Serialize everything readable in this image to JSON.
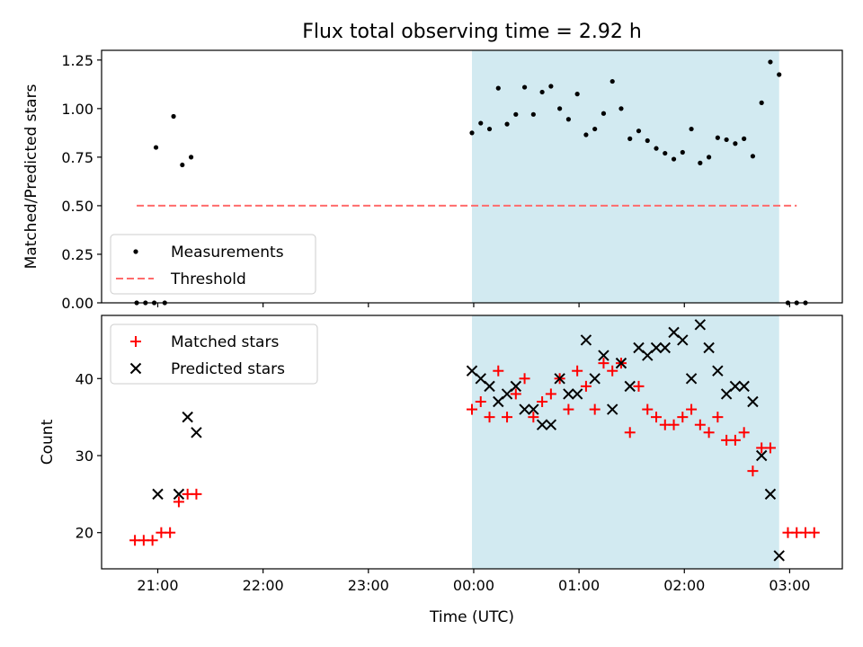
{
  "title": "Flux total observing time = 2.92 h",
  "xlabel": "Time (UTC)",
  "colors": {
    "shade": "#add8e6",
    "threshold": "#ff6b6b",
    "matched": "#ff0000",
    "predicted": "#000000",
    "measurement": "#000000"
  },
  "chart_data": [
    {
      "type": "scatter",
      "ylabel": "Matched/Predicted stars",
      "xlim": [
        "20:28",
        "03:30"
      ],
      "ylim": [
        0,
        1.3
      ],
      "yticks": [
        0.0,
        0.25,
        0.5,
        0.75,
        1.0,
        1.25
      ],
      "ytick_labels": [
        "0.00",
        "0.25",
        "0.50",
        "0.75",
        "1.00",
        "1.25"
      ],
      "shaded_region": [
        "23:59",
        "02:54"
      ],
      "legend_position": "lower left",
      "threshold": {
        "name": "Threshold",
        "y": 0.5,
        "x_range": [
          "20:48",
          "03:04"
        ],
        "style": "dashed"
      },
      "series": [
        {
          "name": "Measurements",
          "marker": "dot",
          "points": [
            [
              "20:48",
              0.0
            ],
            [
              "20:53",
              0.0
            ],
            [
              "20:58",
              0.0
            ],
            [
              "20:59",
              0.8
            ],
            [
              "21:04",
              0.0
            ],
            [
              "21:09",
              0.96
            ],
            [
              "21:14",
              0.71
            ],
            [
              "21:19",
              0.75
            ],
            [
              "23:59",
              0.875
            ],
            [
              "00:04",
              0.925
            ],
            [
              "00:09",
              0.895
            ],
            [
              "00:14",
              1.105
            ],
            [
              "00:19",
              0.92
            ],
            [
              "00:24",
              0.97
            ],
            [
              "00:29",
              1.11
            ],
            [
              "00:34",
              0.97
            ],
            [
              "00:39",
              1.085
            ],
            [
              "00:44",
              1.115
            ],
            [
              "00:49",
              1.0
            ],
            [
              "00:54",
              0.945
            ],
            [
              "00:59",
              1.075
            ],
            [
              "01:04",
              0.865
            ],
            [
              "01:09",
              0.895
            ],
            [
              "01:14",
              0.975
            ],
            [
              "01:19",
              1.14
            ],
            [
              "01:24",
              1.0
            ],
            [
              "01:29",
              0.845
            ],
            [
              "01:34",
              0.885
            ],
            [
              "01:39",
              0.835
            ],
            [
              "01:44",
              0.795
            ],
            [
              "01:49",
              0.77
            ],
            [
              "01:54",
              0.74
            ],
            [
              "01:59",
              0.775
            ],
            [
              "02:04",
              0.895
            ],
            [
              "02:09",
              0.72
            ],
            [
              "02:14",
              0.75
            ],
            [
              "02:19",
              0.85
            ],
            [
              "02:24",
              0.84
            ],
            [
              "02:29",
              0.82
            ],
            [
              "02:34",
              0.845
            ],
            [
              "02:39",
              0.755
            ],
            [
              "02:44",
              1.03
            ],
            [
              "02:49",
              1.24
            ],
            [
              "02:54",
              1.175
            ],
            [
              "02:59",
              0.0
            ],
            [
              "03:04",
              0.0
            ],
            [
              "03:09",
              0.0
            ]
          ]
        }
      ]
    },
    {
      "type": "scatter",
      "ylabel": "Count",
      "xlim": [
        "20:28",
        "03:30"
      ],
      "ylim": [
        15.3,
        48.2
      ],
      "yticks": [
        20,
        30,
        40
      ],
      "ytick_labels": [
        "20",
        "30",
        "40"
      ],
      "xticks": [
        "21:00",
        "22:00",
        "23:00",
        "00:00",
        "01:00",
        "02:00",
        "03:00"
      ],
      "shaded_region": [
        "23:59",
        "02:54"
      ],
      "legend_position": "upper left",
      "series": [
        {
          "name": "Matched stars",
          "marker": "plus",
          "points": [
            [
              "20:47",
              19
            ],
            [
              "20:52",
              19
            ],
            [
              "20:57",
              19
            ],
            [
              "21:02",
              20
            ],
            [
              "21:07",
              20
            ],
            [
              "21:12",
              24
            ],
            [
              "21:17",
              25
            ],
            [
              "21:22",
              25
            ],
            [
              "23:59",
              36
            ],
            [
              "00:04",
              37
            ],
            [
              "00:09",
              35
            ],
            [
              "00:14",
              41
            ],
            [
              "00:19",
              35
            ],
            [
              "00:24",
              38
            ],
            [
              "00:29",
              40
            ],
            [
              "00:34",
              35
            ],
            [
              "00:39",
              37
            ],
            [
              "00:44",
              38
            ],
            [
              "00:49",
              40
            ],
            [
              "00:54",
              36
            ],
            [
              "00:59",
              41
            ],
            [
              "01:04",
              39
            ],
            [
              "01:09",
              36
            ],
            [
              "01:14",
              42
            ],
            [
              "01:19",
              41
            ],
            [
              "01:24",
              42
            ],
            [
              "01:29",
              33
            ],
            [
              "01:34",
              39
            ],
            [
              "01:39",
              36
            ],
            [
              "01:44",
              35
            ],
            [
              "01:49",
              34
            ],
            [
              "01:54",
              34
            ],
            [
              "01:59",
              35
            ],
            [
              "02:04",
              36
            ],
            [
              "02:09",
              34
            ],
            [
              "02:14",
              33
            ],
            [
              "02:19",
              35
            ],
            [
              "02:24",
              32
            ],
            [
              "02:29",
              32
            ],
            [
              "02:34",
              33
            ],
            [
              "02:39",
              28
            ],
            [
              "02:44",
              31
            ],
            [
              "02:49",
              31
            ],
            [
              "02:59",
              20
            ],
            [
              "03:04",
              20
            ],
            [
              "03:09",
              20
            ],
            [
              "03:14",
              20
            ]
          ]
        },
        {
          "name": "Predicted stars",
          "marker": "x",
          "points": [
            [
              "21:00",
              25
            ],
            [
              "21:12",
              25
            ],
            [
              "21:17",
              35
            ],
            [
              "21:22",
              33
            ],
            [
              "23:59",
              41
            ],
            [
              "00:04",
              40
            ],
            [
              "00:09",
              39
            ],
            [
              "00:14",
              37
            ],
            [
              "00:19",
              38
            ],
            [
              "00:24",
              39
            ],
            [
              "00:29",
              36
            ],
            [
              "00:34",
              36
            ],
            [
              "00:39",
              34
            ],
            [
              "00:44",
              34
            ],
            [
              "00:49",
              40
            ],
            [
              "00:54",
              38
            ],
            [
              "00:59",
              38
            ],
            [
              "01:04",
              45
            ],
            [
              "01:09",
              40
            ],
            [
              "01:14",
              43
            ],
            [
              "01:19",
              36
            ],
            [
              "01:24",
              42
            ],
            [
              "01:29",
              39
            ],
            [
              "01:34",
              44
            ],
            [
              "01:39",
              43
            ],
            [
              "01:44",
              44
            ],
            [
              "01:49",
              44
            ],
            [
              "01:54",
              46
            ],
            [
              "01:59",
              45
            ],
            [
              "02:04",
              40
            ],
            [
              "02:09",
              47
            ],
            [
              "02:14",
              44
            ],
            [
              "02:19",
              41
            ],
            [
              "02:24",
              38
            ],
            [
              "02:29",
              39
            ],
            [
              "02:34",
              39
            ],
            [
              "02:39",
              37
            ],
            [
              "02:44",
              30
            ],
            [
              "02:49",
              25
            ],
            [
              "02:54",
              17
            ]
          ]
        }
      ]
    }
  ]
}
